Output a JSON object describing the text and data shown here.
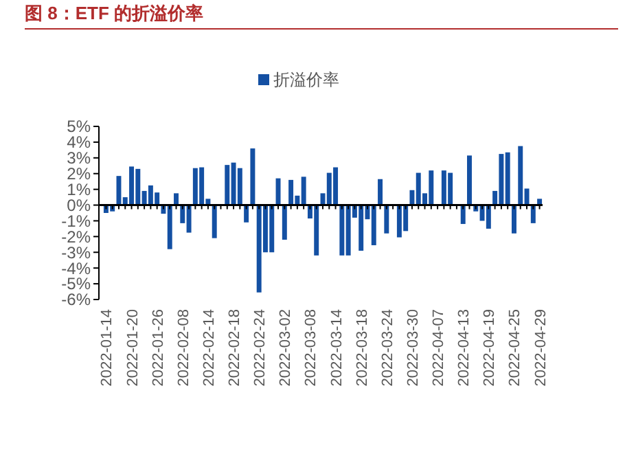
{
  "chart_data": {
    "type": "bar",
    "title": "图 8：ETF 的折溢价率",
    "categories": [
      "2022-01-14",
      null,
      null,
      null,
      "2022-01-20",
      null,
      null,
      null,
      "2022-01-26",
      null,
      null,
      null,
      "2022-02-08",
      null,
      null,
      null,
      "2022-02-14",
      null,
      null,
      null,
      "2022-02-18",
      null,
      null,
      null,
      "2022-02-24",
      null,
      null,
      null,
      "2022-03-02",
      null,
      null,
      null,
      "2022-03-08",
      null,
      null,
      null,
      "2022-03-14",
      null,
      null,
      null,
      "2022-03-18",
      null,
      null,
      null,
      "2022-03-24",
      null,
      null,
      null,
      "2022-03-30",
      null,
      null,
      null,
      "2022-04-07",
      null,
      null,
      null,
      "2022-04-13",
      null,
      null,
      null,
      "2022-04-19",
      null,
      null,
      null,
      "2022-04-25",
      null,
      null,
      null,
      "2022-04-29"
    ],
    "series": [
      {
        "name": "折溢价率",
        "color": "#1450a3",
        "values": [
          -0.5,
          -0.4,
          1.85,
          0.5,
          2.45,
          2.3,
          0.9,
          1.25,
          0.8,
          -0.55,
          -2.8,
          0.75,
          -1.15,
          -1.75,
          2.35,
          2.4,
          0.4,
          -2.1,
          null,
          2.55,
          2.7,
          2.35,
          -1.1,
          3.6,
          -5.55,
          -3.0,
          -3.0,
          1.7,
          -2.2,
          1.6,
          0.6,
          1.8,
          -0.85,
          -3.2,
          0.75,
          2.05,
          2.4,
          -3.2,
          -3.2,
          -0.8,
          -2.9,
          -0.9,
          -2.55,
          1.65,
          -1.8,
          null,
          -2.05,
          -1.65,
          0.95,
          2.05,
          0.75,
          2.2,
          0.05,
          2.2,
          2.05,
          null,
          -1.2,
          3.15,
          -0.4,
          -1.0,
          -1.5,
          0.9,
          3.25,
          3.35,
          -1.8,
          3.75,
          1.05,
          -1.15,
          0.4
        ]
      }
    ],
    "ylim": [
      -6,
      5
    ],
    "yticks": [
      {
        "value": -6,
        "label": "-6%"
      },
      {
        "value": -5,
        "label": "-5%"
      },
      {
        "value": -4,
        "label": "-4%"
      },
      {
        "value": -3,
        "label": "-3%"
      },
      {
        "value": -2,
        "label": "-2%"
      },
      {
        "value": -1,
        "label": "-1%"
      },
      {
        "value": 0,
        "label": "0%"
      },
      {
        "value": 1,
        "label": "1%"
      },
      {
        "value": 2,
        "label": "2%"
      },
      {
        "value": 3,
        "label": "3%"
      },
      {
        "value": 4,
        "label": "4%"
      },
      {
        "value": 5,
        "label": "5%"
      }
    ],
    "legend": "top"
  }
}
